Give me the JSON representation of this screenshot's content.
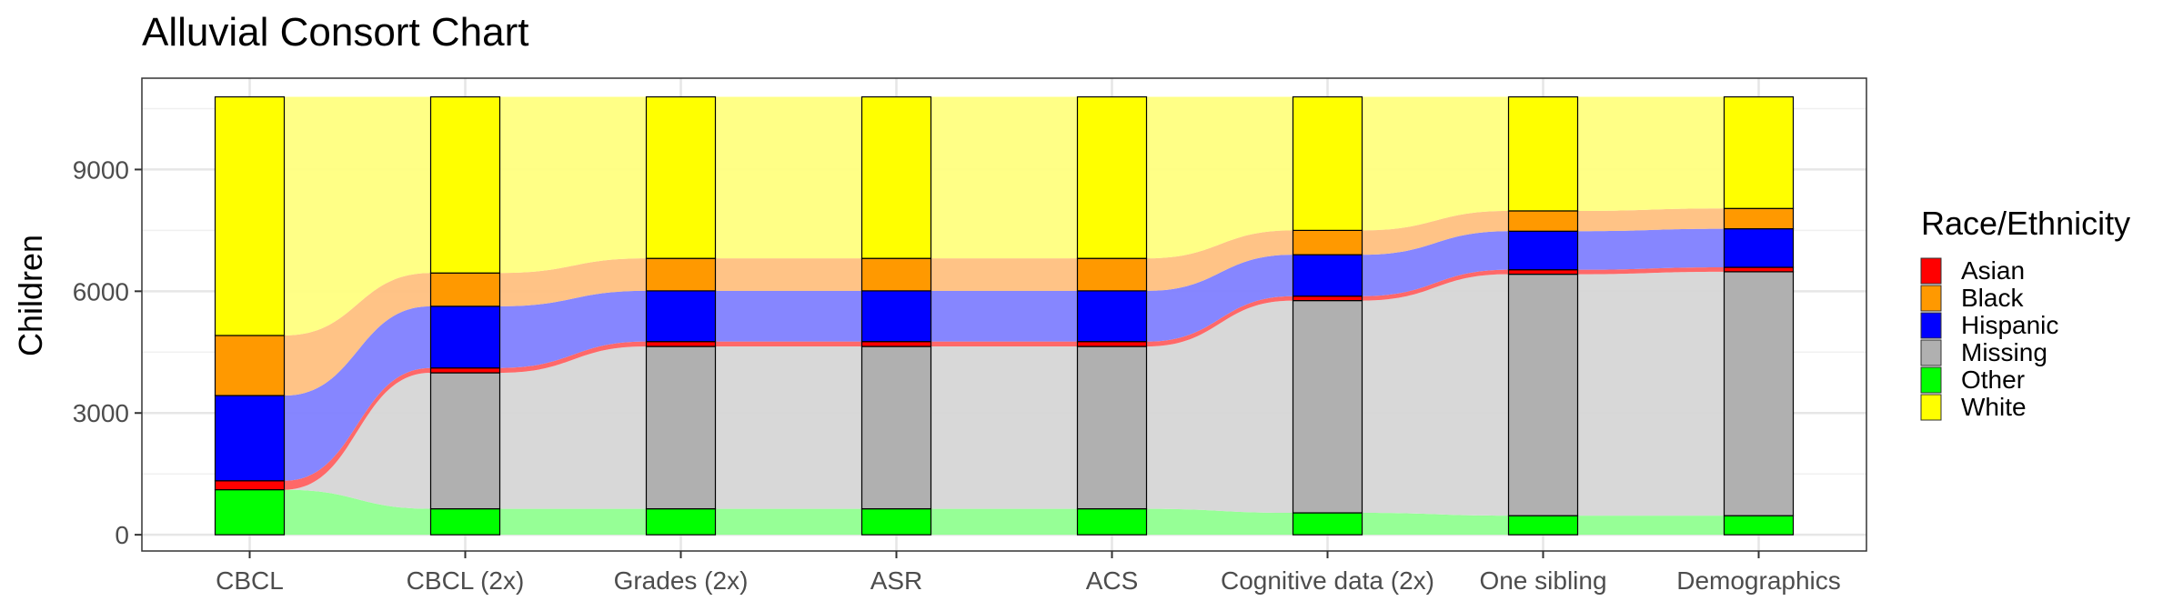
{
  "chart_data": {
    "type": "alluvial",
    "title": "Alluvial Consort Chart",
    "ylabel": "Children",
    "xlabel": "",
    "ylim": [
      -400,
      11250
    ],
    "yticks": [
      0,
      3000,
      6000,
      9000
    ],
    "grid": true,
    "legend_position": "right",
    "legend_title": "Race/Ethnicity",
    "categories": [
      "CBCL",
      "CBCL (2x)",
      "Grades (2x)",
      "ASR",
      "ACS",
      "Cognitive data (2x)",
      "One sibling",
      "Demographics"
    ],
    "series": [
      {
        "name": "Asian",
        "color": "#ff0000",
        "values": [
          220,
          120,
          120,
          120,
          120,
          110,
          110,
          110
        ]
      },
      {
        "name": "Black",
        "color": "#ff9900",
        "values": [
          1480,
          820,
          800,
          800,
          800,
          600,
          500,
          500
        ]
      },
      {
        "name": "Hispanic",
        "color": "#0000ff",
        "values": [
          2100,
          1520,
          1250,
          1250,
          1250,
          1020,
          950,
          950
        ]
      },
      {
        "name": "Missing",
        "color": "#b0b0b0",
        "values": [
          0,
          3350,
          4000,
          4000,
          4000,
          5230,
          5950,
          6010
        ]
      },
      {
        "name": "Other",
        "color": "#00ff00",
        "values": [
          1110,
          640,
          640,
          640,
          640,
          540,
          470,
          470
        ]
      },
      {
        "name": "White",
        "color": "#ffff00",
        "values": [
          5880,
          4340,
          3980,
          3980,
          3980,
          3290,
          2810,
          2750
        ]
      }
    ]
  }
}
